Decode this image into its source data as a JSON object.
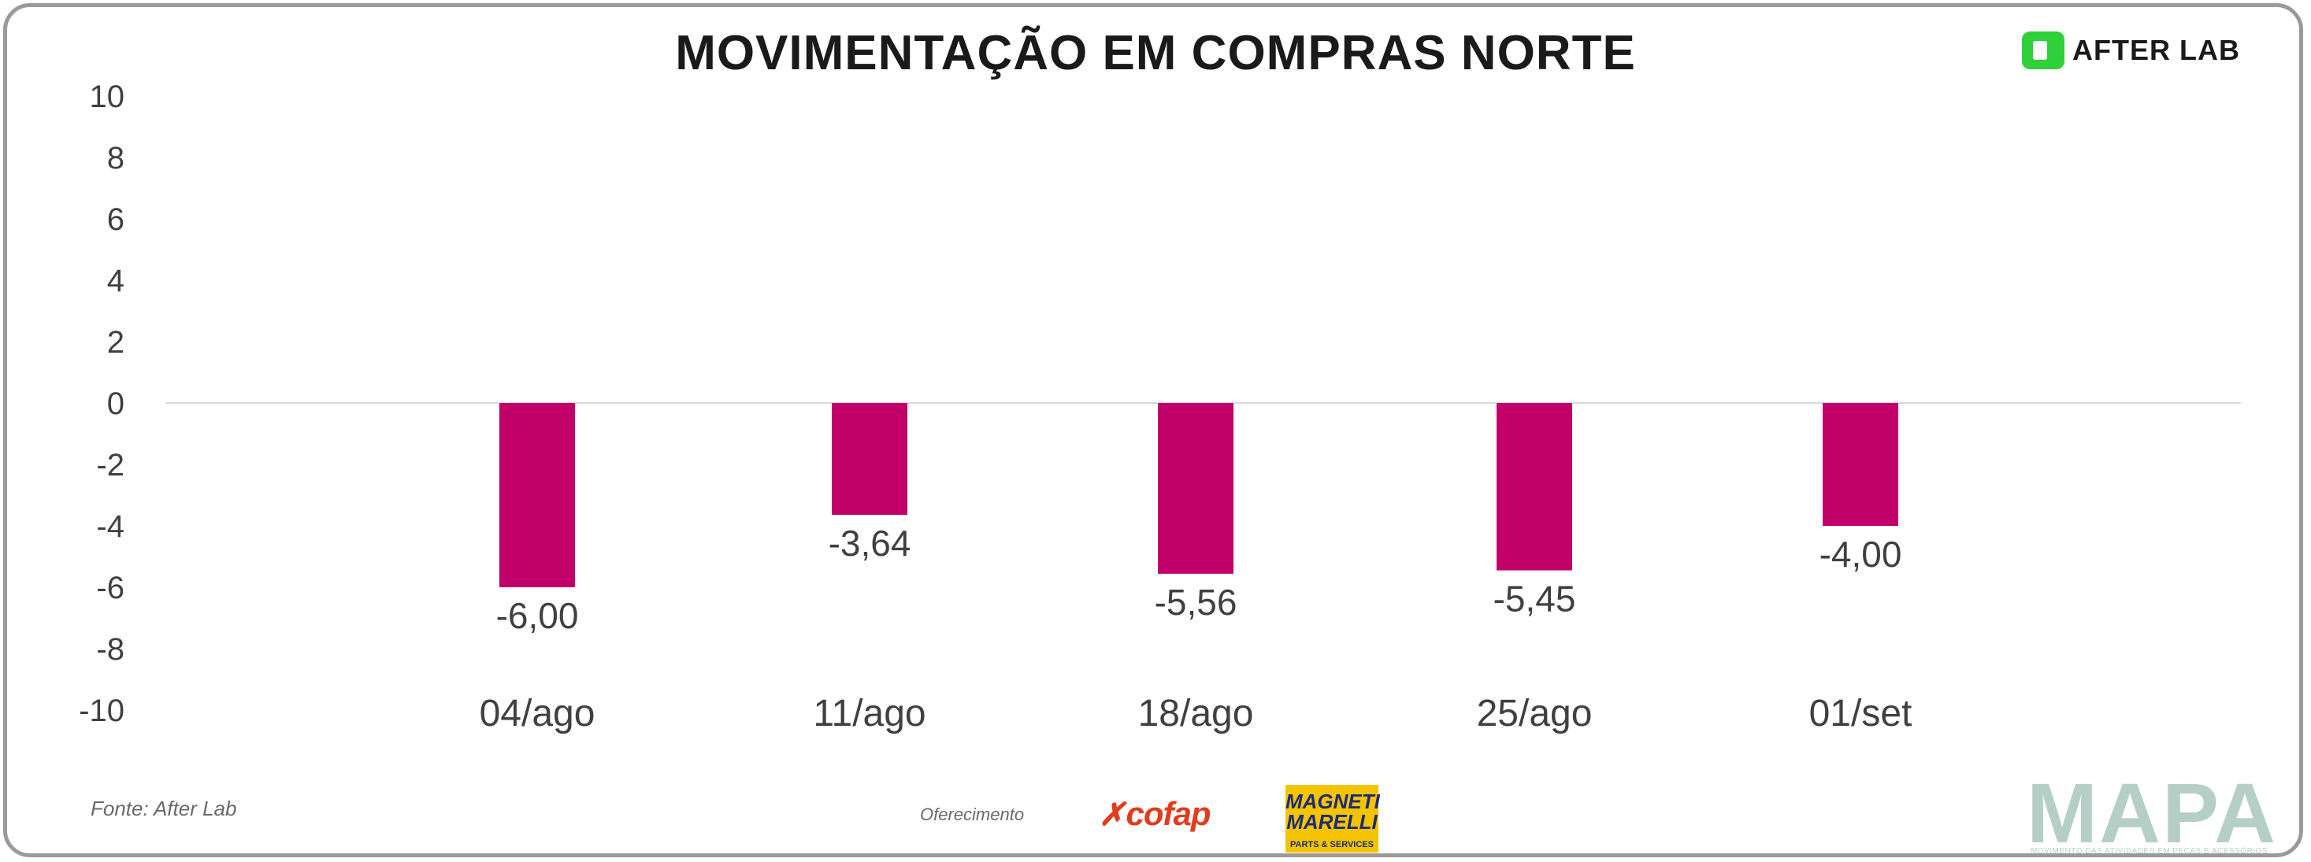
{
  "header": {
    "title": "MOVIMENTAÇÃO EM COMPRAS NORTE",
    "brand": "AFTER LAB"
  },
  "chart_data": {
    "type": "bar",
    "title": "MOVIMENTAÇÃO EM COMPRAS NORTE",
    "xlabel": "",
    "ylabel": "",
    "categories": [
      "04/ago",
      "11/ago",
      "18/ago",
      "25/ago",
      "01/set"
    ],
    "values": [
      -6.0,
      -3.64,
      -5.56,
      -5.45,
      -4.0
    ],
    "value_labels": [
      "-6,00",
      "-3,64",
      "-5,56",
      "-5,45",
      "-4,00"
    ],
    "ylim": [
      -10,
      10
    ],
    "yticks": [
      10,
      8,
      6,
      4,
      2,
      0,
      -2,
      -4,
      -6,
      -8,
      -10
    ],
    "ytick_labels": [
      "10",
      "8",
      "6",
      "4",
      "2",
      "0",
      "-2",
      "-4",
      "-6",
      "-8",
      "-10"
    ],
    "bar_color": "#c2006a",
    "grid": false,
    "legend": "none"
  },
  "footer": {
    "source": "Fonte: After Lab",
    "sponsor_label": "Oferecimento",
    "sponsors": [
      "cofap",
      "MAGNETI MARELLI",
      "PARTS & SERVICES"
    ],
    "logo": "MAPA",
    "logo_subtitle": "MOVIMENTO DAS ATIVIDADES EM PEÇAS E ACESSÓRIOS"
  },
  "colors": {
    "accent": "#c2006a",
    "brand_green": "#2ed13a",
    "cofap_red": "#e23b1e",
    "magneti_yellow": "#f5c400",
    "mapa_gray": "#b6cfc6"
  }
}
